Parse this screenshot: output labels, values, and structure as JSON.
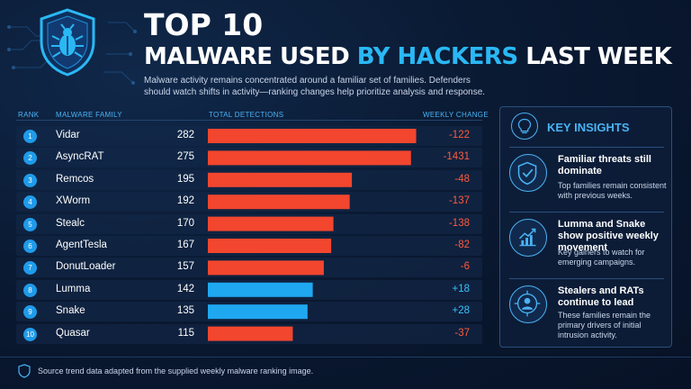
{
  "header": {
    "title_line1": "TOP 10",
    "title_line2_a": "MALWARE USED ",
    "title_line2_b": "BY HACKERS",
    "title_line2_c": " LAST WEEK",
    "subtitle": "Malware activity remains concentrated around a familiar set of families. Defenders should watch shifts in activity—ranking changes help prioritize analysis and response."
  },
  "columns": {
    "rank": "RANK",
    "family": "MALWARE FAMILY",
    "detections": "TOTAL DETECTIONS",
    "change": "WEEKLY CHANGE"
  },
  "colors": {
    "decline": "#f2462e",
    "gain": "#1fa8f0",
    "accent": "#2ab8f5",
    "change_negative": "#ff5a3c",
    "change_positive": "#3ec0ff"
  },
  "chart_data": {
    "type": "bar",
    "orientation": "horizontal",
    "categories": [
      "Vidar",
      "AsyncRAT",
      "Remcos",
      "XWorm",
      "Stealc",
      "AgentTesla",
      "DonutLoader",
      "Lumma",
      "Snake",
      "Quasar"
    ],
    "ranks": [
      "1",
      "2",
      "3",
      "4",
      "5",
      "6",
      "7",
      "8",
      "9",
      "10"
    ],
    "values": [
      282,
      275,
      195,
      192,
      170,
      167,
      157,
      142,
      135,
      115
    ],
    "weekly_change": [
      "-122",
      "-1431",
      "-48",
      "-137",
      "-138",
      "-82",
      "-6",
      "+18",
      "+28",
      "-37"
    ],
    "xlim": [
      0,
      285
    ],
    "grid": false
  },
  "insights": {
    "title": "KEY INSIGHTS",
    "items": [
      {
        "icon": "shield-check-icon",
        "heading": "Familiar threats still dominate",
        "body": "Top families remain consistent with previous weeks."
      },
      {
        "icon": "trend-up-chart-icon",
        "heading": "Lumma and Snake show positive weekly movement",
        "body": "Key gainers to watch for emerging campaigns."
      },
      {
        "icon": "user-target-icon",
        "heading": "Stealers and RATs continue to lead",
        "body": "These families remain the primary drivers of initial intrusion activity."
      }
    ]
  },
  "footer": {
    "text": "Source trend data adapted from the supplied weekly malware ranking image."
  }
}
